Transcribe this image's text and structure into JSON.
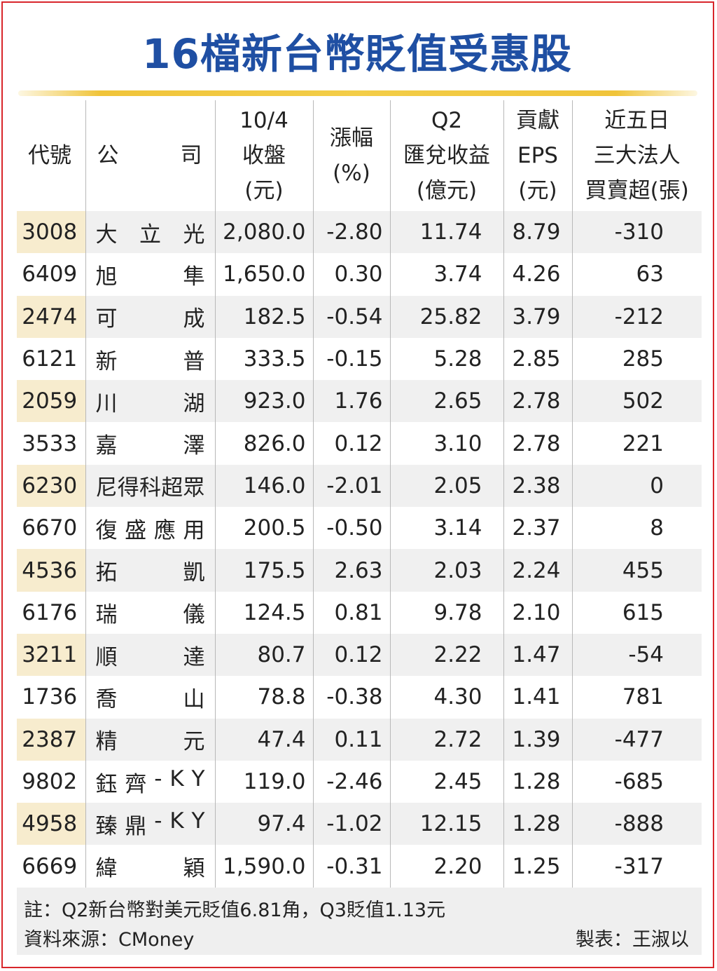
{
  "title": "16檔新台幣貶值受惠股",
  "headers": {
    "code": "代號",
    "company_a": "公",
    "company_b": "司",
    "close": [
      "10/4",
      "收盤",
      "(元)"
    ],
    "change": [
      "漲幅",
      "(%)"
    ],
    "fx_gain": [
      "Q2",
      "匯兌收益",
      "(億元)"
    ],
    "eps": [
      "貢獻",
      "EPS",
      "(元)"
    ],
    "net": [
      "近五日",
      "三大法人",
      "買賣超(張)"
    ]
  },
  "chart_data": {
    "type": "table",
    "columns": [
      "代號",
      "公司",
      "10/4收盤(元)",
      "漲幅(%)",
      "Q2匯兌收益(億元)",
      "貢獻EPS(元)",
      "近五日三大法人買賣超(張)"
    ],
    "rows": [
      {
        "code": "3008",
        "name": [
          "大",
          "立",
          "光"
        ],
        "close": "2,080.0",
        "change": "-2.80",
        "fx_gain": "11.74",
        "eps": "8.79",
        "net": "-310"
      },
      {
        "code": "6409",
        "name": [
          "旭",
          "隼"
        ],
        "close": "1,650.0",
        "change": "0.30",
        "fx_gain": "3.74",
        "eps": "4.26",
        "net": "63"
      },
      {
        "code": "2474",
        "name": [
          "可",
          "成"
        ],
        "close": "182.5",
        "change": "-0.54",
        "fx_gain": "25.82",
        "eps": "3.79",
        "net": "-212"
      },
      {
        "code": "6121",
        "name": [
          "新",
          "普"
        ],
        "close": "333.5",
        "change": "-0.15",
        "fx_gain": "5.28",
        "eps": "2.85",
        "net": "285"
      },
      {
        "code": "2059",
        "name": [
          "川",
          "湖"
        ],
        "close": "923.0",
        "change": "1.76",
        "fx_gain": "2.65",
        "eps": "2.78",
        "net": "502"
      },
      {
        "code": "3533",
        "name": [
          "嘉",
          "澤"
        ],
        "close": "826.0",
        "change": "0.12",
        "fx_gain": "3.10",
        "eps": "2.78",
        "net": "221"
      },
      {
        "code": "6230",
        "name": [
          "尼",
          "得",
          "科",
          "超",
          "眾"
        ],
        "close": "146.0",
        "change": "-2.01",
        "fx_gain": "2.05",
        "eps": "2.38",
        "net": "0"
      },
      {
        "code": "6670",
        "name": [
          "復",
          "盛",
          "應",
          "用"
        ],
        "close": "200.5",
        "change": "-0.50",
        "fx_gain": "3.14",
        "eps": "2.37",
        "net": "8"
      },
      {
        "code": "4536",
        "name": [
          "拓",
          "凱"
        ],
        "close": "175.5",
        "change": "2.63",
        "fx_gain": "2.03",
        "eps": "2.24",
        "net": "455"
      },
      {
        "code": "6176",
        "name": [
          "瑞",
          "儀"
        ],
        "close": "124.5",
        "change": "0.81",
        "fx_gain": "9.78",
        "eps": "2.10",
        "net": "615"
      },
      {
        "code": "3211",
        "name": [
          "順",
          "達"
        ],
        "close": "80.7",
        "change": "0.12",
        "fx_gain": "2.22",
        "eps": "1.47",
        "net": "-54"
      },
      {
        "code": "1736",
        "name": [
          "喬",
          "山"
        ],
        "close": "78.8",
        "change": "-0.38",
        "fx_gain": "4.30",
        "eps": "1.41",
        "net": "781"
      },
      {
        "code": "2387",
        "name": [
          "精",
          "元"
        ],
        "close": "47.4",
        "change": "0.11",
        "fx_gain": "2.72",
        "eps": "1.39",
        "net": "-477"
      },
      {
        "code": "9802",
        "name": [
          "鈺",
          "齊",
          "-",
          "K",
          "Y"
        ],
        "close": "119.0",
        "change": "-2.46",
        "fx_gain": "2.45",
        "eps": "1.28",
        "net": "-685"
      },
      {
        "code": "4958",
        "name": [
          "臻",
          "鼎",
          "-",
          "K",
          "Y"
        ],
        "close": "97.4",
        "change": "-1.02",
        "fx_gain": "12.15",
        "eps": "1.28",
        "net": "-888"
      },
      {
        "code": "6669",
        "name": [
          "緯",
          "穎"
        ],
        "close": "1,590.0",
        "change": "-0.31",
        "fx_gain": "2.20",
        "eps": "1.25",
        "net": "-317"
      }
    ]
  },
  "footer": {
    "note": "註：Q2新台幣對美元貶值6.81角，Q3貶值1.13元",
    "source": "資料來源：CMoney",
    "maker": "製表：王淑以"
  },
  "colors": {
    "title": "#1f4fa3",
    "border": "#d8262b",
    "gold_rule": "#f0c43a",
    "code_shade": "#f7ecce",
    "row_shade": "#f0f0f0"
  }
}
